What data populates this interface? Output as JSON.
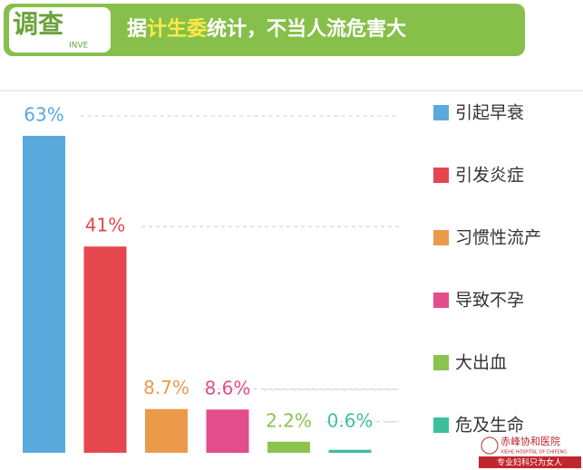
{
  "badge": {
    "text": "调查",
    "sub": "INVE"
  },
  "chart_data": {
    "type": "bar",
    "title_parts": [
      "据",
      "计生委",
      "统计，不当人流危害大"
    ],
    "categories": [
      "引起早衰",
      "引发炎症",
      "习惯性流产",
      "导致不孕",
      "大出血",
      "危及生命"
    ],
    "values": [
      63,
      41,
      8.7,
      8.6,
      2.2,
      0.6
    ],
    "value_labels": [
      "63%",
      "41%",
      "8.7%",
      "8.6%",
      "2.2%",
      "0.6%"
    ],
    "colors": [
      "#5aa9dc",
      "#e5474f",
      "#eb9a4c",
      "#e24d8a",
      "#8ac44f",
      "#3dbf9f"
    ],
    "ylim": [
      0,
      63
    ],
    "legend": "right"
  },
  "footer": {
    "name": "赤峰协和医院",
    "english": "XIEHE HOSPITAL OF CHIFENG",
    "slogan": "专业妇科只为女人"
  }
}
